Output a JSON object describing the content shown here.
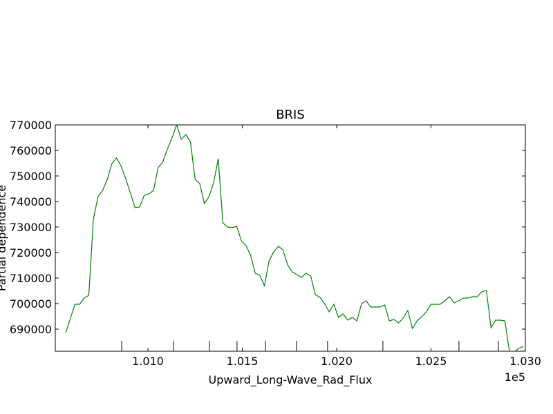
{
  "chart_data": {
    "type": "line",
    "title": "BRIS",
    "xlabel": "Upward_Long-Wave_Rad_Flux",
    "ylabel": "Partial dependence",
    "x_offset_label": "1e5",
    "x": [
      100564,
      100588.5,
      100613,
      100637.5,
      100662,
      100686.5,
      100711,
      100735.5,
      100760,
      100784.5,
      100809,
      100833.5,
      100858,
      100882.5,
      100907,
      100931.5,
      100956,
      100980.5,
      101005,
      101029.5,
      101054,
      101078.5,
      101103,
      101127.5,
      101152,
      101176.5,
      101201,
      101225.5,
      101250,
      101274.5,
      101299,
      101323.5,
      101348,
      101372.5,
      101397,
      101421.5,
      101446,
      101470.5,
      101495,
      101519.5,
      101544,
      101568.5,
      101593,
      101617.5,
      101642,
      101666.5,
      101691,
      101715.5,
      101740,
      101764.5,
      101789,
      101813.5,
      101838,
      101862.5,
      101887,
      101911.5,
      101936,
      101960.5,
      101985,
      102009.5,
      102034,
      102058.5,
      102083,
      102107.5,
      102132,
      102156.5,
      102181,
      102205.5,
      102230,
      102254.5,
      102279,
      102303.5,
      102328,
      102352.5,
      102377,
      102401.5,
      102426,
      102450.5,
      102475,
      102499.5,
      102524,
      102548.5,
      102573,
      102597.5,
      102622,
      102646.5,
      102671,
      102695.5,
      102720,
      102744.5,
      102769,
      102793.5,
      102818,
      102842.5,
      102867,
      102891.5,
      102916,
      102940.5,
      102965,
      102989.5
    ],
    "series": [
      {
        "color": "#008000",
        "values": [
          688600,
          694050,
          699730,
          699730,
          702160,
          703240,
          733240,
          741890,
          744320,
          748650,
          754860,
          757030,
          753780,
          748920,
          743240,
          737570,
          737840,
          742430,
          742970,
          744320,
          753240,
          755410,
          760540,
          764860,
          770000,
          764320,
          766220,
          763240,
          748650,
          747030,
          739190,
          741890,
          747300,
          756760,
          731620,
          730000,
          729730,
          730270,
          724600,
          722700,
          718920,
          711890,
          711080,
          707030,
          716760,
          720270,
          722430,
          721080,
          715140,
          712430,
          711350,
          710270,
          711890,
          710810,
          703510,
          702430,
          700000,
          696760,
          699730,
          694600,
          695950,
          693510,
          694600,
          693240,
          700000,
          701080,
          698650,
          698650,
          698650,
          699460,
          693240,
          693780,
          692430,
          694320,
          697300,
          690270,
          693240,
          694860,
          696760,
          699730,
          699730,
          699730,
          701080,
          702700,
          700270,
          701080,
          702160,
          702160,
          702700,
          702700,
          704600,
          705140,
          690540,
          693510,
          693510,
          693240,
          681080,
          681080,
          682430,
          683240
        ]
      }
    ],
    "deciles": [
      100861,
      101135,
      101326,
      101472,
      101623,
      101787,
      101952,
      102245,
      102648,
      102857
    ],
    "xlim": [
      100509,
      103000
    ],
    "ylim": [
      681350,
      770000
    ],
    "xticks": [
      {
        "value": 101000,
        "label": "1.010"
      },
      {
        "value": 101500,
        "label": "1.015"
      },
      {
        "value": 102000,
        "label": "1.020"
      },
      {
        "value": 102500,
        "label": "1.025"
      },
      {
        "value": 103000,
        "label": "1.030"
      }
    ],
    "yticks": [
      690000,
      700000,
      710000,
      720000,
      730000,
      740000,
      750000,
      760000,
      770000
    ]
  }
}
